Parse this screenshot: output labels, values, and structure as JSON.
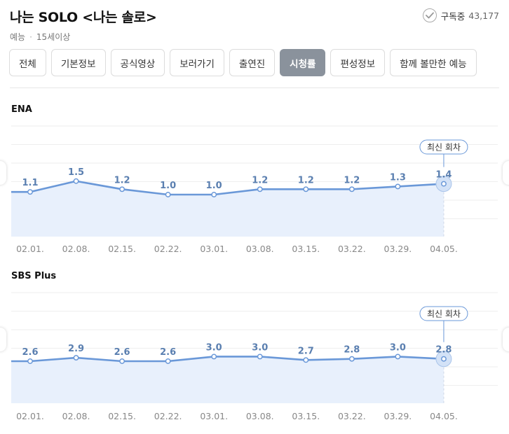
{
  "header": {
    "title": "나는 SOLO <나는 솔로>",
    "genre": "예능",
    "age_rating": "15세이상",
    "meta_separator": "·",
    "subscribe_label": "구독중",
    "subscribe_count": "43,177"
  },
  "tabs": [
    {
      "label": "전체",
      "active": false
    },
    {
      "label": "기본정보",
      "active": false
    },
    {
      "label": "공식영상",
      "active": false
    },
    {
      "label": "보러가기",
      "active": false
    },
    {
      "label": "출연진",
      "active": false
    },
    {
      "label": "시청률",
      "active": true
    },
    {
      "label": "편성정보",
      "active": false
    },
    {
      "label": "함께 볼만한 예능",
      "active": false
    }
  ],
  "colors": {
    "line": "#6a98d8",
    "fill": "#e8f0fc",
    "label": "#5a7fb0",
    "tick": "#888888",
    "grid": "#eeeeee",
    "active_tab": "#8a929c"
  },
  "chart_data": [
    {
      "type": "area",
      "channel": "ENA",
      "categories": [
        "02.01.",
        "02.08.",
        "02.15.",
        "02.22.",
        "03.01.",
        "03.08.",
        "03.15.",
        "03.22.",
        "03.29.",
        "04.05."
      ],
      "values": [
        1.1,
        1.5,
        1.2,
        1.0,
        1.0,
        1.2,
        1.2,
        1.2,
        1.3,
        1.4
      ],
      "latest_label": "최신 회차",
      "grid": true
    },
    {
      "type": "area",
      "channel": "SBS Plus",
      "categories": [
        "02.01.",
        "02.08.",
        "02.15.",
        "02.22.",
        "03.01.",
        "03.08.",
        "03.15.",
        "03.22.",
        "03.29.",
        "04.05."
      ],
      "values": [
        2.6,
        2.9,
        2.6,
        2.6,
        3.0,
        3.0,
        2.7,
        2.8,
        3.0,
        2.8
      ],
      "latest_label": "최신 회차",
      "grid": true
    }
  ]
}
